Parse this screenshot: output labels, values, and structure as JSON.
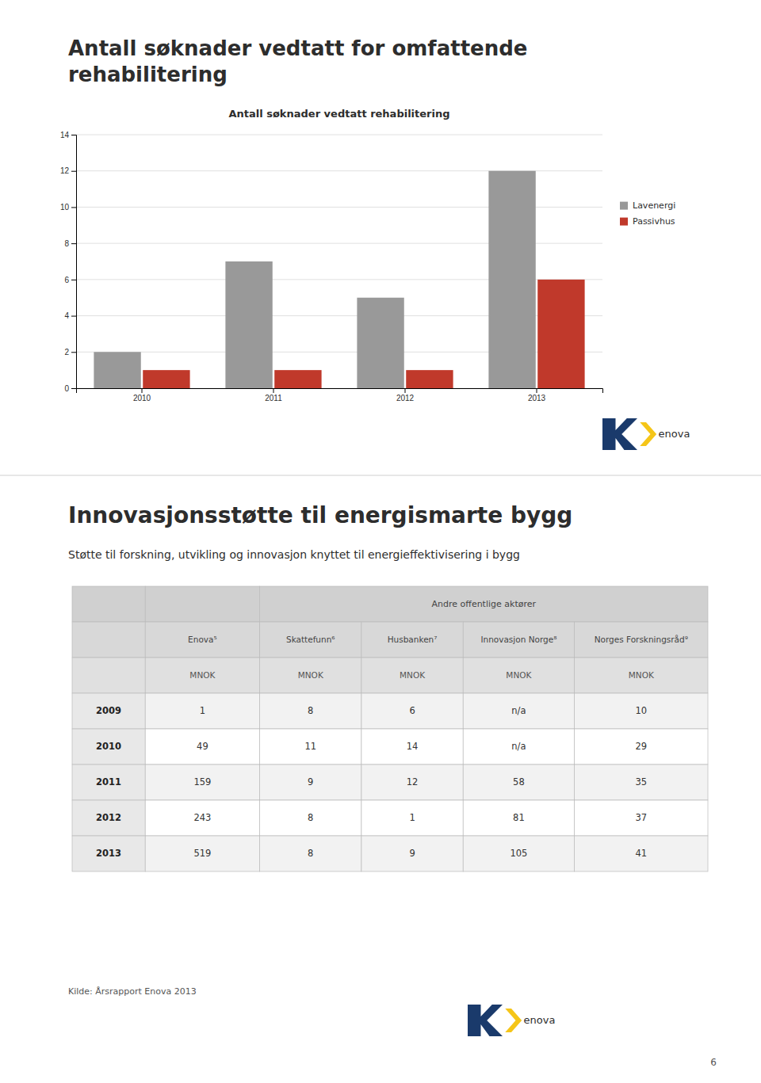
{
  "page": {
    "heading": [
      "Antall søknader vedtatt for omfattende",
      "rehabilitering"
    ],
    "source": "Kilde: Årsrapport Enova 2013",
    "page_number": "6",
    "logo_text": "enova",
    "logo_colors": [
      "#1a3a6b",
      "#f5c518"
    ]
  },
  "chart_data": [
    {
      "type": "bar",
      "title": "Antall søknader vedtatt rehabilitering",
      "categories": [
        "2010",
        "2011",
        "2012",
        "2013"
      ],
      "series": [
        {
          "name": "Lavenergi",
          "color": "#999999",
          "values": [
            2,
            7,
            5,
            12
          ]
        },
        {
          "name": "Passivhus",
          "color": "#c0392b",
          "values": [
            1,
            1,
            1,
            6
          ]
        }
      ],
      "ylim": [
        0,
        14
      ],
      "yticks": [
        0,
        2,
        4,
        6,
        8,
        10,
        12,
        14
      ],
      "grid": true,
      "legend": "right"
    },
    {
      "type": "table",
      "title": "Innovasjonsstøtte til energismarte bygg",
      "subtitle": "Støtte til forskning, utvikling og innovasjon knyttet til energieffektivisering i bygg",
      "header": "Andre offentlige aktører",
      "columns": [
        "Enova⁵",
        "Skattefunn⁶",
        "Husbanken⁷",
        "Innovasjon Norge⁸",
        "Norges Forskningsråd⁹"
      ],
      "unit": "MNOK",
      "rows": [
        [
          "2009",
          "1",
          "8",
          "6",
          "n/a",
          "10"
        ],
        [
          "2010",
          "49",
          "11",
          "14",
          "n/a",
          "29"
        ],
        [
          "2011",
          "159",
          "9",
          "12",
          "58",
          "35"
        ],
        [
          "2012",
          "243",
          "8",
          "1",
          "81",
          "37"
        ],
        [
          "2013",
          "519",
          "8",
          "9",
          "105",
          "41"
        ]
      ]
    }
  ]
}
